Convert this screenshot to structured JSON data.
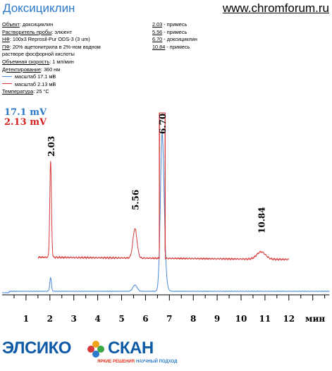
{
  "header": {
    "title": "Доксициклин",
    "site": "www.chromforum.ru"
  },
  "conditions": [
    {
      "label": "Объект",
      "value": ": доксициклин"
    },
    {
      "label": "Растворитель пробы",
      "value": ": элюент"
    },
    {
      "label": "НФ",
      "value": ": 100x3 Reprosil-Pur ODS-3 (3 um)"
    },
    {
      "label": "ПФ",
      "value": ": 20% ацетонитрила в 2%-ном водном"
    },
    {
      "label": "",
      "value": "растворе фосфорной кислоты"
    },
    {
      "label": "Объемная скорость",
      "value": ": 1 мл/мин"
    },
    {
      "label": "Детектирование",
      "value": ": 360 нм"
    }
  ],
  "legend": [
    {
      "name": "масштаб 17.1 мВ",
      "color": "#4a8bd6"
    },
    {
      "name": "масштаб 2.13 мВ",
      "color": "#d63a3a"
    }
  ],
  "temperature": {
    "label": "Температура",
    "value": ": 25 °C"
  },
  "peak_list": [
    {
      "rt": "2.03",
      "desc": " - примесь"
    },
    {
      "rt": "5.56",
      "desc": " - примесь"
    },
    {
      "rt": "6.70",
      "desc": " - доксициклин"
    },
    {
      "rt": "10.84",
      "desc": " - примесь"
    }
  ],
  "scale_labels": {
    "blue": "17.1 mV",
    "red": "2.13 mV"
  },
  "chart_data": {
    "type": "line",
    "xlabel": "мин",
    "xlim": [
      0,
      13.7
    ],
    "x_ticks": [
      1,
      2,
      3,
      4,
      5,
      6,
      7,
      8,
      9,
      10,
      11,
      12
    ],
    "series": [
      {
        "name": "масштаб 17.1 мВ",
        "color": "#4a8bd6",
        "start": 0.0,
        "end": 13.7,
        "baseline": 0.0,
        "peaks": [
          {
            "rt": 2.03,
            "height": 2.4,
            "width": 0.035
          },
          {
            "rt": 5.56,
            "height": 1.1,
            "width": 0.09
          },
          {
            "rt": 6.7,
            "height": 28.0,
            "width": 0.075,
            "tail": 0.07
          }
        ]
      },
      {
        "name": "масштаб 2.13 мВ",
        "color": "#d63a3a",
        "start": 1.5,
        "end": 12.0,
        "baseline": 0.0,
        "peaks": [
          {
            "rt": 2.03,
            "height": 17.0,
            "width": 0.035
          },
          {
            "rt": 5.56,
            "height": 5.2,
            "width": 0.085
          },
          {
            "rt": 10.84,
            "height": 1.3,
            "width": 0.18
          }
        ],
        "clipped_peak": {
          "rt": 6.7,
          "left": 6.58,
          "right": 6.82
        }
      }
    ],
    "peak_labels": [
      {
        "rt": "2.03",
        "x": 2.03,
        "series": "масштаб 2.13 мВ"
      },
      {
        "rt": "5.56",
        "x": 5.56,
        "series": "масштаб 2.13 мВ"
      },
      {
        "rt": "6.70",
        "x": 6.7,
        "series": "масштаб 2.13 мВ"
      },
      {
        "rt": "10.84",
        "x": 10.84,
        "series": "масштаб 2.13 мВ"
      }
    ]
  },
  "logo": {
    "part1": "ЭЛСИКО",
    "part2": "СКАН",
    "slogan1": "ЯРКИЕ РЕШЕНИЯ",
    "slogan2": "НАУЧНЫЙ ПОДХОД"
  }
}
